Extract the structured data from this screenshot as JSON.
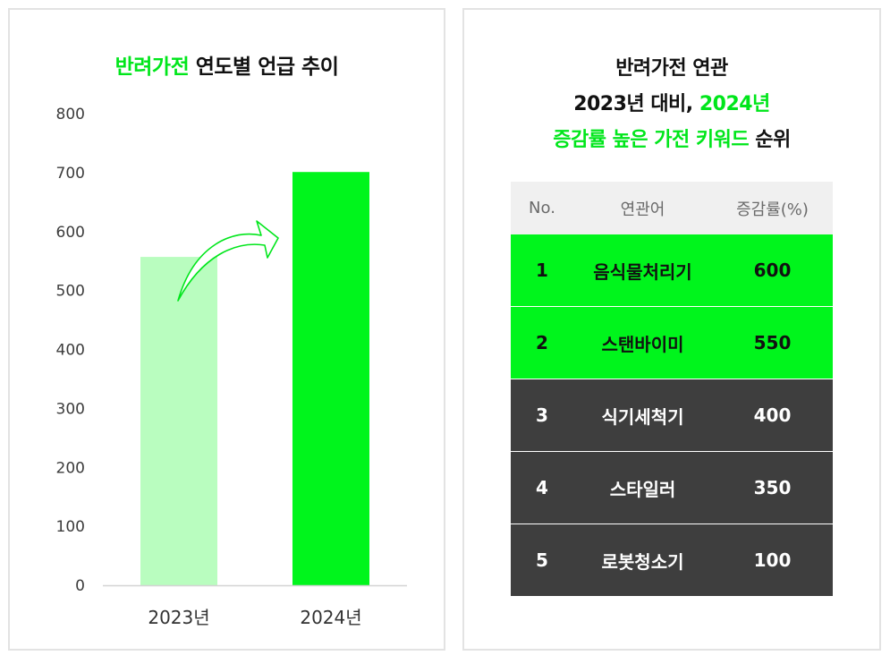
{
  "left_panel": {
    "title_accent": "반려가전",
    "title_rest": " 연도별 언급 추이"
  },
  "chart_data": {
    "type": "bar",
    "categories": [
      "2023년",
      "2024년"
    ],
    "values": [
      557,
      701
    ],
    "ylim": [
      0,
      800
    ],
    "yticks": [
      0,
      100,
      200,
      300,
      400,
      500,
      600,
      700,
      800
    ],
    "colors": [
      "#b9fdbf",
      "#00f51c"
    ],
    "grid": false,
    "legend": "none",
    "annotation": "curved-arrow-up-icon"
  },
  "right_panel": {
    "title_line1": "반려가전 연관",
    "title_line2_a": "2023년 대비, ",
    "title_line2_b": "2024년",
    "title_line3_a": "증감률 높은 가전 키워드",
    "title_line3_b": " 순위",
    "table": {
      "headers": [
        "No.",
        "연관어",
        "증감률(%)"
      ],
      "rows": [
        [
          "1",
          "음식물처리기",
          "600"
        ],
        [
          "2",
          "스탠바이미",
          "550"
        ],
        [
          "3",
          "식기세척기",
          "400"
        ],
        [
          "4",
          "스타일러",
          "350"
        ],
        [
          "5",
          "로봇청소기",
          "100"
        ]
      ],
      "highlight_color": "#00f51c",
      "dark_color": "#3e3e3e"
    }
  }
}
